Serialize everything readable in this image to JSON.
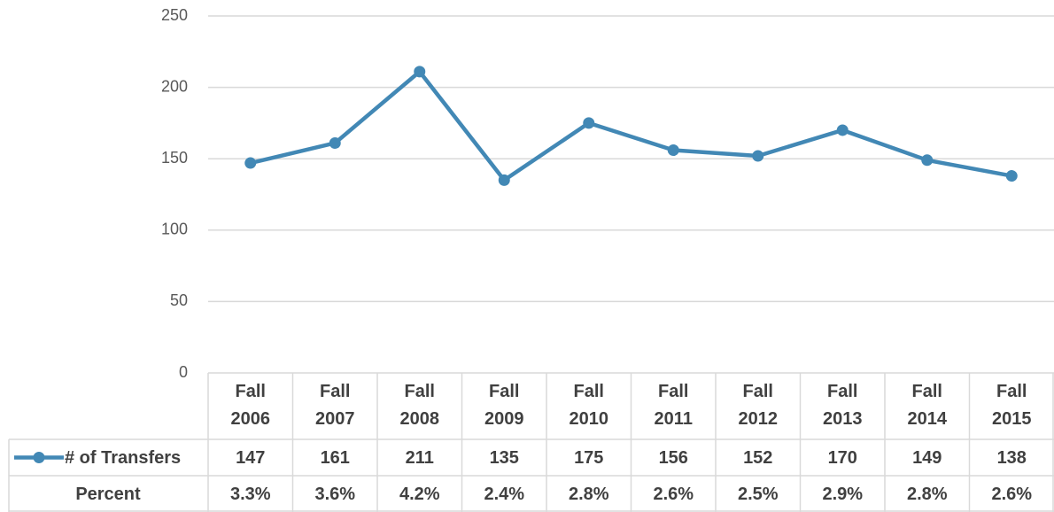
{
  "chart_data": {
    "type": "line",
    "categories": [
      "Fall 2006",
      "Fall 2007",
      "Fall 2008",
      "Fall 2009",
      "Fall 2010",
      "Fall 2011",
      "Fall 2012",
      "Fall 2013",
      "Fall 2014",
      "Fall 2015"
    ],
    "series": [
      {
        "name": "# of Transfers",
        "color": "#4288b5",
        "values": [
          147,
          161,
          211,
          135,
          175,
          156,
          152,
          170,
          149,
          138
        ]
      }
    ],
    "data_table": {
      "rows": [
        {
          "name": "Percent",
          "values": [
            "3.3%",
            "3.6%",
            "4.2%",
            "2.4%",
            "2.8%",
            "2.6%",
            "2.5%",
            "2.9%",
            "2.8%",
            "2.6%"
          ]
        }
      ]
    },
    "ylim": [
      0,
      250
    ],
    "yticks": [
      0,
      50,
      100,
      150,
      200,
      250
    ],
    "grid": true
  }
}
